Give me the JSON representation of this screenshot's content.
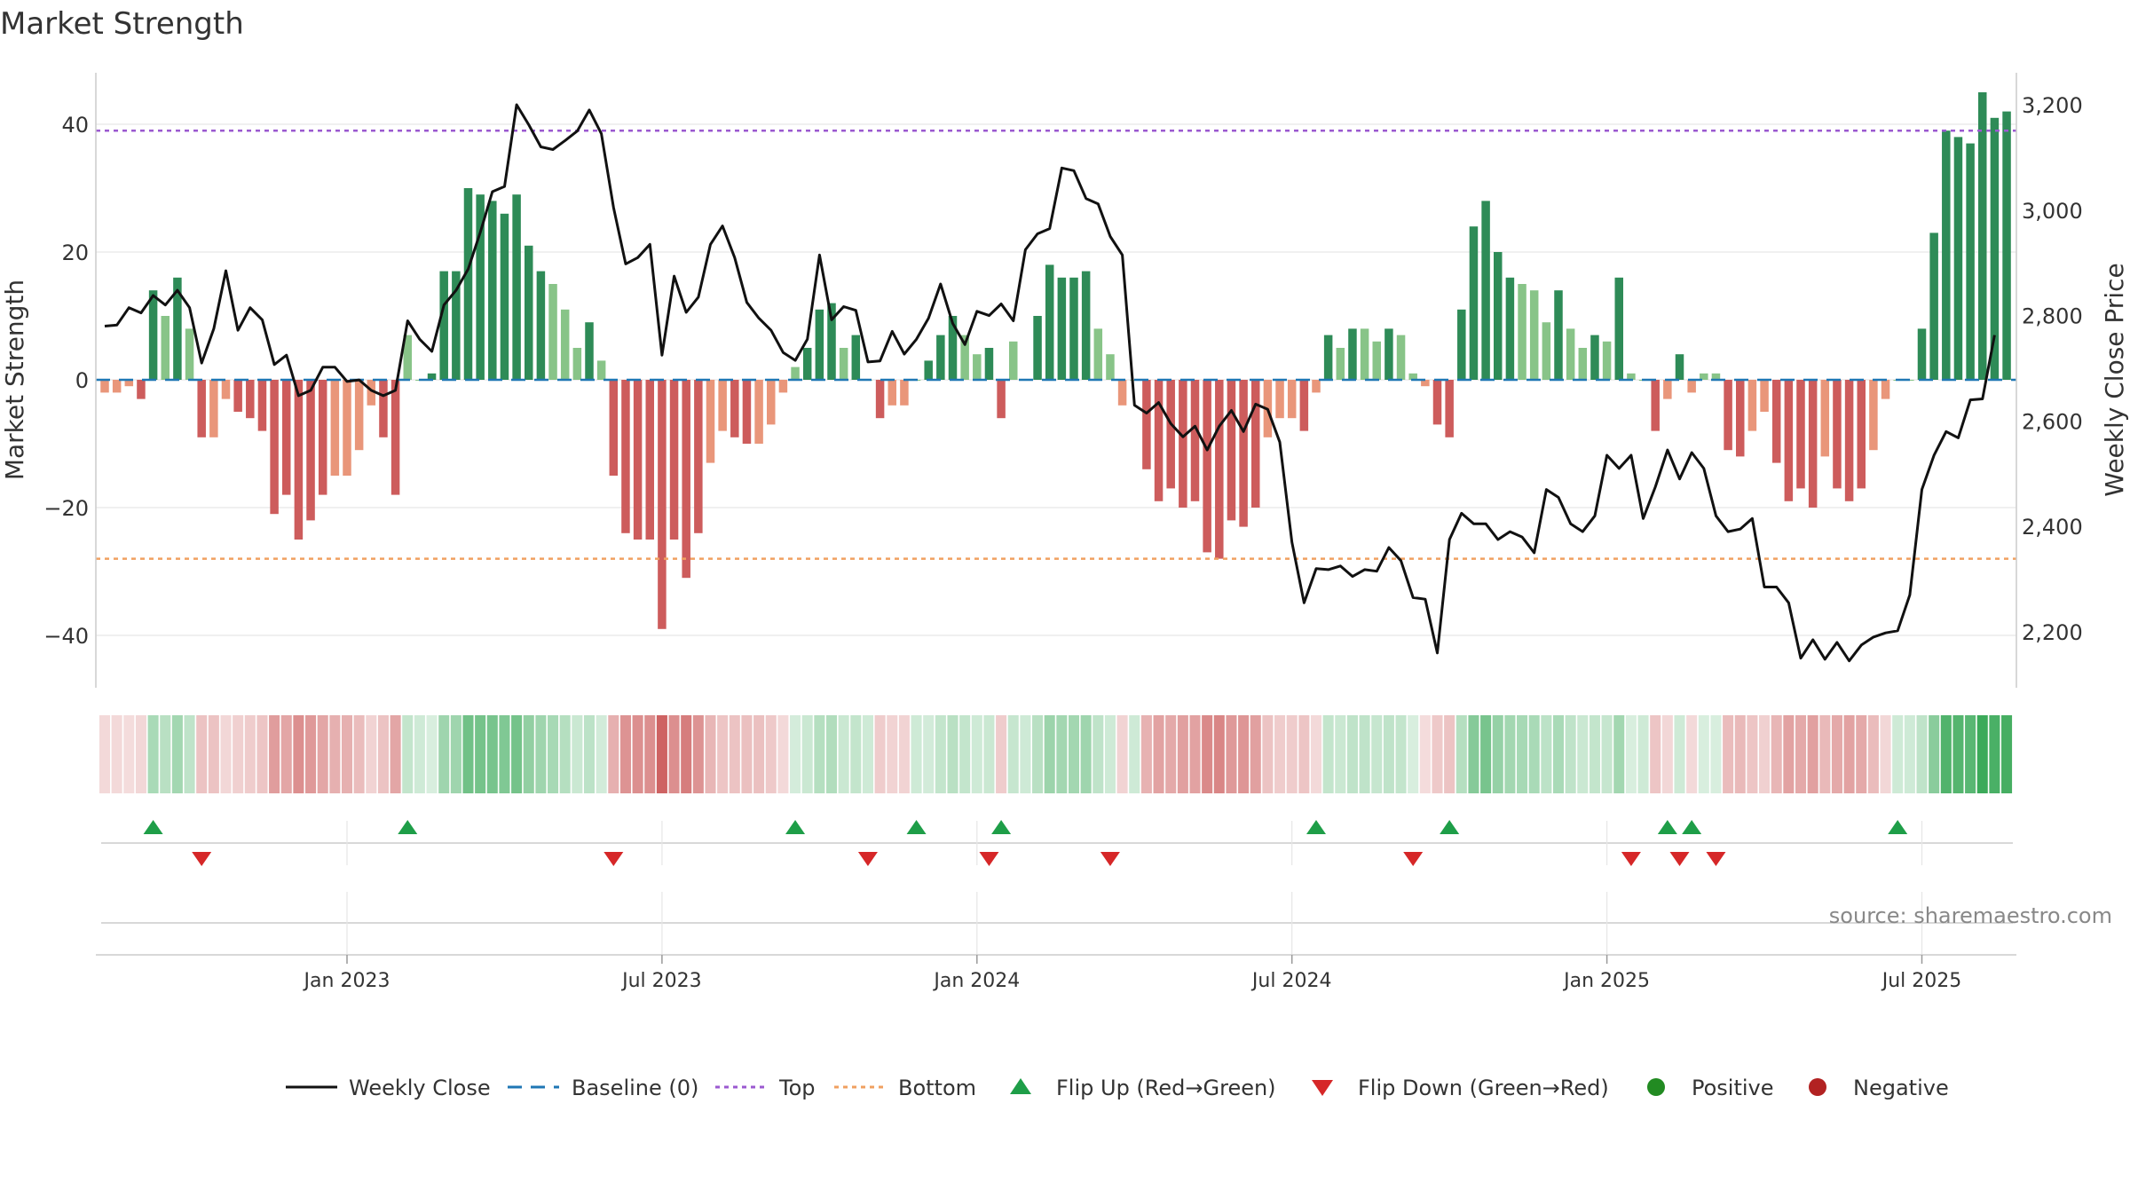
{
  "chart_data": {
    "type": "bar",
    "title": "Market Strength",
    "ylabel_left": "Market Strength",
    "ylabel_right": "Weekly Close Price",
    "source": "source: sharemaestro.com",
    "left_axis": {
      "ticks": [
        40,
        20,
        0,
        -20,
        -40
      ],
      "tick_labels": [
        "40",
        "20",
        "0",
        "−20",
        "−40"
      ]
    },
    "right_axis": {
      "ticks": [
        3200,
        3000,
        2800,
        2600,
        2400,
        2200
      ],
      "tick_labels": [
        "3,200",
        "3,000",
        "2,800",
        "2,600",
        "2,400",
        "2,200"
      ]
    },
    "x_ticks": [
      {
        "week": 20,
        "label": "Jan 2023"
      },
      {
        "week": 46,
        "label": "Jul 2023"
      },
      {
        "week": 72,
        "label": "Jan 2024"
      },
      {
        "week": 98,
        "label": "Jul 2024"
      },
      {
        "week": 124,
        "label": "Jan 2025"
      },
      {
        "week": 150,
        "label": "Jul 2025"
      }
    ],
    "top_line": 39,
    "bottom_line": -28,
    "strength": [
      -2,
      -2,
      -1,
      -3,
      14,
      10,
      16,
      8,
      -9,
      -9,
      -3,
      -5,
      -6,
      -8,
      -21,
      -18,
      -25,
      -22,
      -18,
      -15,
      -15,
      -11,
      -4,
      -9,
      -18,
      7,
      0,
      1,
      17,
      17,
      30,
      29,
      28,
      26,
      29,
      21,
      17,
      15,
      11,
      5,
      9,
      3,
      -15,
      -24,
      -25,
      -25,
      -39,
      -25,
      -31,
      -24,
      -13,
      -8,
      -9,
      -10,
      -10,
      -7,
      -2,
      2,
      5,
      11,
      12,
      5,
      7,
      0,
      -6,
      -4,
      -4,
      0,
      3,
      7,
      10,
      7,
      4,
      5,
      -6,
      6,
      0,
      10,
      18,
      16,
      16,
      17,
      8,
      4,
      -4,
      0,
      -14,
      -19,
      -17,
      -20,
      -19,
      -27,
      -28,
      -22,
      -23,
      -20,
      -9,
      -6,
      -6,
      -8,
      -2,
      7,
      5,
      8,
      8,
      6,
      8,
      7,
      1,
      -1,
      -7,
      -9,
      11,
      24,
      28,
      20,
      16,
      15,
      14,
      9,
      14,
      8,
      5,
      7,
      6,
      16,
      1,
      0,
      -8,
      -3,
      4,
      -2,
      1,
      1,
      -11,
      -12,
      -8,
      -5,
      -13,
      -19,
      -17,
      -20,
      -12,
      -17,
      -19,
      -17,
      -11,
      -3,
      0,
      0,
      8,
      23,
      39,
      38,
      37,
      45,
      41,
      42
    ],
    "close": [
      2780,
      2782,
      2815,
      2805,
      2838,
      2820,
      2848,
      2815,
      2710,
      2775,
      2885,
      2772,
      2815,
      2792,
      2707,
      2725,
      2648,
      2658,
      2702,
      2702,
      2675,
      2678,
      2658,
      2648,
      2658,
      2790,
      2755,
      2732,
      2820,
      2848,
      2888,
      2958,
      3035,
      3045,
      3200,
      3162,
      3120,
      3115,
      3132,
      3150,
      3190,
      3145,
      3005,
      2898,
      2910,
      2935,
      2725,
      2875,
      2806,
      2835,
      2935,
      2970,
      2910,
      2825,
      2795,
      2772,
      2730,
      2715,
      2755,
      2915,
      2792,
      2817,
      2810,
      2712,
      2714,
      2770,
      2727,
      2755,
      2795,
      2860,
      2785,
      2745,
      2808,
      2800,
      2822,
      2790,
      2925,
      2955,
      2965,
      3080,
      3075,
      3022,
      3012,
      2950,
      2915,
      2630,
      2615,
      2635,
      2595,
      2570,
      2590,
      2545,
      2590,
      2620,
      2580,
      2632,
      2622,
      2560,
      2370,
      2255,
      2320,
      2318,
      2325,
      2305,
      2318,
      2315,
      2360,
      2335,
      2265,
      2262,
      2160,
      2375,
      2425,
      2405,
      2405,
      2375,
      2390,
      2380,
      2350,
      2470,
      2455,
      2405,
      2390,
      2420,
      2535,
      2510,
      2535,
      2415,
      2475,
      2545,
      2490,
      2540,
      2510,
      2420,
      2390,
      2395,
      2415,
      2285,
      2285,
      2255,
      2150,
      2185,
      2148,
      2180,
      2145,
      2175,
      2190,
      2198,
      2202,
      2270,
      2470,
      2535,
      2580,
      2568,
      2640,
      2642,
      2763
    ],
    "flip_up_weeks": [
      4,
      25,
      57,
      67,
      74,
      100,
      111,
      129,
      131,
      148
    ],
    "flip_down_weeks": [
      8,
      42,
      63,
      73,
      83,
      108,
      126,
      130,
      133
    ],
    "legend": [
      {
        "key": "close",
        "label": "Weekly Close"
      },
      {
        "key": "baseline",
        "label": "Baseline (0)"
      },
      {
        "key": "top",
        "label": "Top"
      },
      {
        "key": "bottom",
        "label": "Bottom"
      },
      {
        "key": "flip_up",
        "label": "Flip Up (Red→Green)"
      },
      {
        "key": "flip_down",
        "label": "Flip Down (Green→Red)"
      },
      {
        "key": "positive",
        "label": "Positive"
      },
      {
        "key": "negative",
        "label": "Negative"
      }
    ],
    "colors": {
      "pos_dark": "#2e8b57",
      "pos_light": "#88c488",
      "neg_dark": "#cd5c5c",
      "neg_light": "#e9967a",
      "baseline": "#1f77b4",
      "top": "#9b59d0",
      "bottom": "#f0a060",
      "close": "#111111",
      "flip_up": "#1e9e48",
      "flip_down": "#d62728",
      "positive": "#228b22",
      "negative": "#b22222",
      "grid": "#ebebeb",
      "axis": "#cccccc"
    }
  }
}
